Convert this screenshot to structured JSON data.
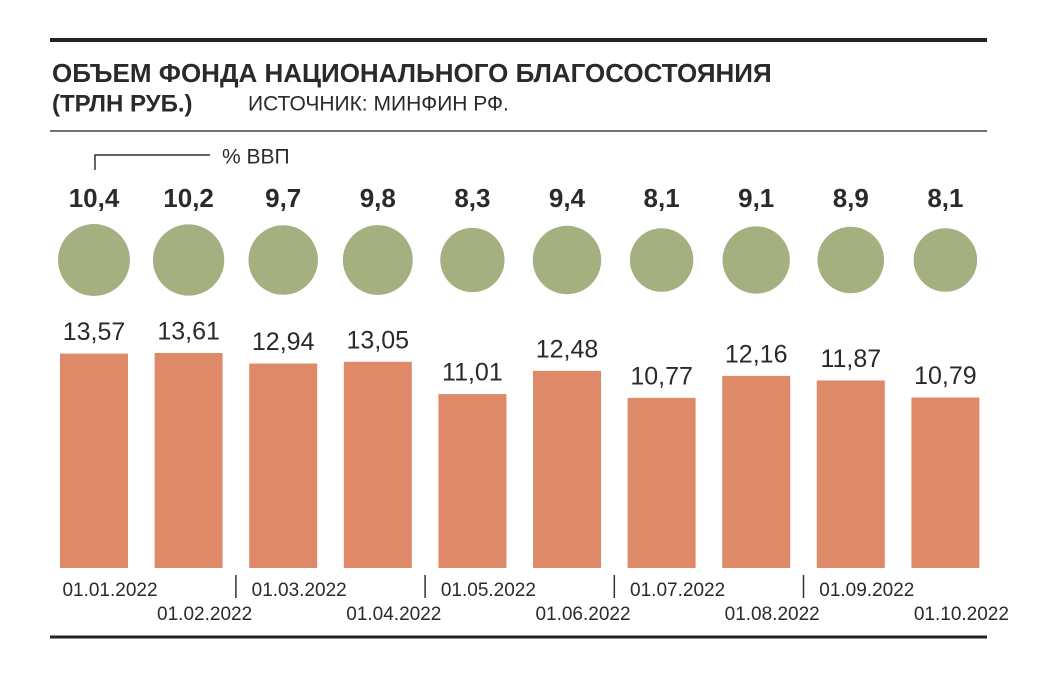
{
  "chart_data": {
    "type": "bar",
    "title": "ОБЪЕМ ФОНДА НАЦИОНАЛЬНОГО БЛАГОСОСТОЯНИЯ",
    "unit": "(ТРЛН РУБ.)",
    "source": "ИСТОЧНИК: МИНФИН РФ.",
    "categories": [
      "01.01.2022",
      "01.02.2022",
      "01.03.2022",
      "01.04.2022",
      "01.05.2022",
      "01.06.2022",
      "01.07.2022",
      "01.08.2022",
      "01.09.2022",
      "01.10.2022"
    ],
    "values": [
      13.57,
      13.61,
      12.94,
      13.05,
      11.01,
      12.48,
      10.77,
      12.16,
      11.87,
      10.79
    ],
    "value_labels": [
      "13,57",
      "13,61",
      "12,94",
      "13,05",
      "11,01",
      "12,48",
      "10,77",
      "12,16",
      "11,87",
      "10,79"
    ],
    "color": "#de8a68",
    "gdp": {
      "label": "% ВВП",
      "color": "#a4b080",
      "values": [
        10.4,
        10.2,
        9.7,
        9.8,
        8.3,
        9.4,
        8.1,
        9.1,
        8.9,
        8.1
      ],
      "value_labels": [
        "10,4",
        "10,2",
        "9,7",
        "9,8",
        "8,3",
        "9,4",
        "8,1",
        "9,1",
        "8,9",
        "8,1"
      ]
    }
  }
}
